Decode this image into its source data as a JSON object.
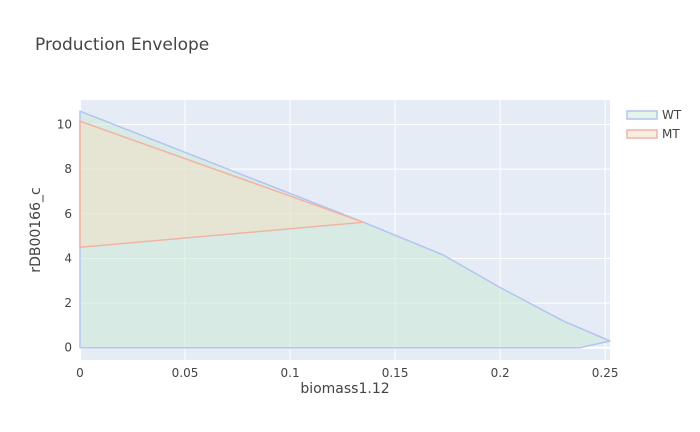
{
  "chart_data": {
    "type": "area",
    "title": "Production Envelope",
    "xlabel": "biomass1.12",
    "ylabel": "rDB00166_c",
    "xlim": [
      0,
      0.2523
    ],
    "ylim": [
      -0.55,
      11.1
    ],
    "x_ticks": [
      0,
      0.05,
      0.1,
      0.15,
      0.2,
      0.25
    ],
    "x_tick_labels": [
      "0",
      "0.05",
      "0.1",
      "0.15",
      "0.2",
      "0.25"
    ],
    "y_ticks": [
      0,
      2,
      4,
      6,
      8,
      10
    ],
    "y_tick_labels": [
      "0",
      "2",
      "4",
      "6",
      "8",
      "10"
    ],
    "grid": true,
    "legend_position": "top-right",
    "series": [
      {
        "name": "WT",
        "color": "#b3c3f2",
        "fill": "rgba(204,235,213,0.55)",
        "points": [
          [
            0,
            0
          ],
          [
            0.238,
            0
          ],
          [
            0.2523,
            0.3
          ],
          [
            0.23,
            1.2
          ],
          [
            0.2,
            2.7
          ],
          [
            0.173,
            4.15
          ],
          [
            0.135,
            5.62
          ],
          [
            0,
            10.6
          ],
          [
            0,
            0
          ]
        ]
      },
      {
        "name": "MT",
        "color": "#f2b3a6",
        "fill": "rgba(243,224,199,0.55)",
        "points": [
          [
            0,
            4.5
          ],
          [
            0.135,
            5.62
          ],
          [
            0,
            10.15
          ],
          [
            0,
            4.5
          ]
        ]
      }
    ]
  }
}
